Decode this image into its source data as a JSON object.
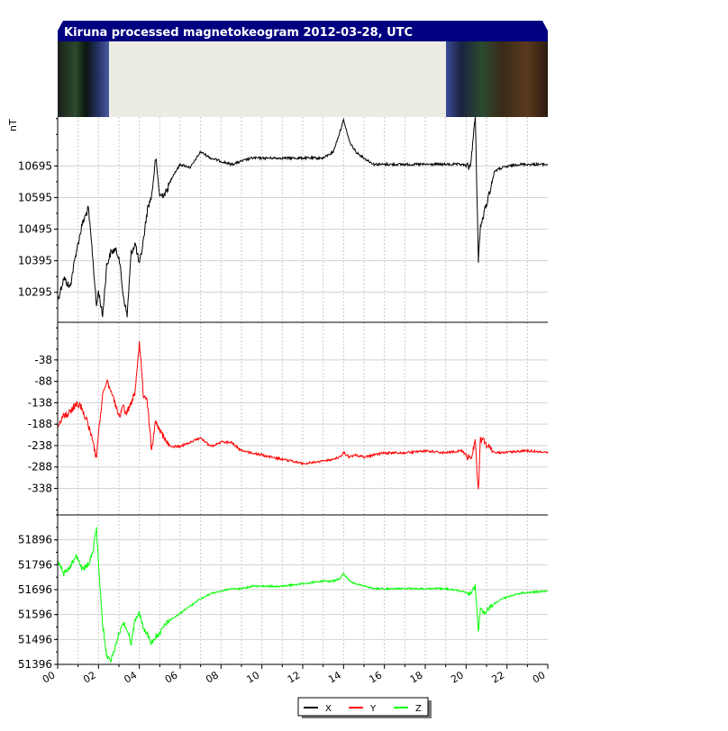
{
  "chart_data": {
    "type": "line",
    "title": "Kiruna processed magnetokeogram 2012-03-28, UTC",
    "ylabel": "nT",
    "x_ticks": [
      "00",
      "02",
      "04",
      "06",
      "08",
      "10",
      "12",
      "14",
      "16",
      "18",
      "20",
      "22",
      "00"
    ],
    "x_range_hours": [
      0,
      24
    ],
    "grid": true,
    "legend_placement": "bottom-center",
    "panels": [
      {
        "name": "X",
        "color": "#000000",
        "yticks": [
          10295,
          10395,
          10495,
          10595,
          10695
        ],
        "ylim": [
          10200,
          10850
        ],
        "x": [
          0,
          0.3,
          0.6,
          0.9,
          1.2,
          1.5,
          1.7,
          1.9,
          2.0,
          2.2,
          2.4,
          2.6,
          2.8,
          3.0,
          3.2,
          3.4,
          3.6,
          3.8,
          4.0,
          4.2,
          4.4,
          4.6,
          4.8,
          5.0,
          5.3,
          5.6,
          6.0,
          6.5,
          7.0,
          7.5,
          8.0,
          8.5,
          9.0,
          9.5,
          10.0,
          11.0,
          12.0,
          13.0,
          13.5,
          13.8,
          14.0,
          14.3,
          14.6,
          15.0,
          15.5,
          16.0,
          17.0,
          18.0,
          19.0,
          19.8,
          20.2,
          20.45,
          20.6,
          20.7,
          20.9,
          21.1,
          21.4,
          21.8,
          22.5,
          23.0,
          24.0
        ],
        "y": [
          10270,
          10340,
          10310,
          10420,
          10510,
          10560,
          10420,
          10250,
          10300,
          10220,
          10380,
          10420,
          10430,
          10410,
          10290,
          10220,
          10420,
          10450,
          10380,
          10460,
          10560,
          10600,
          10720,
          10600,
          10610,
          10660,
          10700,
          10690,
          10740,
          10720,
          10710,
          10700,
          10710,
          10720,
          10720,
          10720,
          10720,
          10720,
          10740,
          10800,
          10840,
          10770,
          10740,
          10720,
          10700,
          10700,
          10700,
          10700,
          10700,
          10700,
          10690,
          10850,
          10400,
          10500,
          10550,
          10600,
          10680,
          10690,
          10700,
          10700,
          10700
        ]
      },
      {
        "name": "Y",
        "color": "#ff0000",
        "yticks": [
          -38,
          -88,
          -138,
          -188,
          -238,
          -288,
          -338
        ],
        "ylim": [
          -400,
          50
        ],
        "x": [
          0,
          0.3,
          0.6,
          0.9,
          1.2,
          1.5,
          1.7,
          1.9,
          2.0,
          2.2,
          2.4,
          2.6,
          2.8,
          3.0,
          3.2,
          3.4,
          3.6,
          3.8,
          4.0,
          4.2,
          4.4,
          4.6,
          4.8,
          5.0,
          5.3,
          5.6,
          6.0,
          6.5,
          7.0,
          7.5,
          8.0,
          8.5,
          9.0,
          9.5,
          10.0,
          11.0,
          12.0,
          13.0,
          13.5,
          13.8,
          14.0,
          14.3,
          14.6,
          15.0,
          15.5,
          16.0,
          17.0,
          18.0,
          19.0,
          19.8,
          20.2,
          20.45,
          20.6,
          20.7,
          20.9,
          21.1,
          21.4,
          21.8,
          22.5,
          23.0,
          24.0
        ],
        "y": [
          -190,
          -170,
          -160,
          -140,
          -150,
          -190,
          -220,
          -270,
          -210,
          -120,
          -90,
          -110,
          -140,
          -170,
          -150,
          -160,
          -140,
          -110,
          5,
          -120,
          -140,
          -250,
          -180,
          -200,
          -230,
          -240,
          -240,
          -230,
          -220,
          -240,
          -230,
          -230,
          -250,
          -255,
          -260,
          -270,
          -280,
          -275,
          -270,
          -265,
          -255,
          -265,
          -260,
          -265,
          -260,
          -255,
          -255,
          -250,
          -255,
          -250,
          -270,
          -230,
          -345,
          -220,
          -230,
          -240,
          -255,
          -255,
          -252,
          -250,
          -253
        ]
      },
      {
        "name": "Z",
        "color": "#00ff00",
        "yticks": [
          51396,
          51496,
          51596,
          51696,
          51796,
          51896
        ],
        "ylim": [
          51396,
          51996
        ],
        "x": [
          0,
          0.3,
          0.6,
          0.9,
          1.2,
          1.5,
          1.7,
          1.9,
          2.0,
          2.2,
          2.4,
          2.6,
          2.8,
          3.0,
          3.2,
          3.4,
          3.6,
          3.8,
          4.0,
          4.2,
          4.4,
          4.6,
          4.8,
          5.0,
          5.3,
          5.6,
          6.0,
          6.5,
          7.0,
          7.5,
          8.0,
          8.5,
          9.0,
          9.5,
          10.0,
          11.0,
          12.0,
          13.0,
          13.5,
          13.8,
          14.0,
          14.3,
          14.6,
          15.0,
          15.5,
          16.0,
          17.0,
          18.0,
          19.0,
          19.8,
          20.2,
          20.45,
          20.6,
          20.7,
          20.9,
          21.1,
          21.4,
          21.8,
          22.5,
          23.0,
          24.0
        ],
        "y": [
          51810,
          51760,
          51790,
          51830,
          51780,
          51800,
          51840,
          51940,
          51800,
          51560,
          51430,
          51410,
          51460,
          51520,
          51560,
          51540,
          51480,
          51580,
          51600,
          51540,
          51520,
          51480,
          51510,
          51520,
          51560,
          51580,
          51600,
          51630,
          51660,
          51680,
          51690,
          51700,
          51700,
          51710,
          51710,
          51710,
          51720,
          51730,
          51730,
          51740,
          51760,
          51730,
          51720,
          51710,
          51700,
          51700,
          51700,
          51700,
          51700,
          51690,
          51680,
          51710,
          51530,
          51620,
          51600,
          51620,
          51640,
          51660,
          51680,
          51685,
          51690
        ]
      }
    ]
  }
}
